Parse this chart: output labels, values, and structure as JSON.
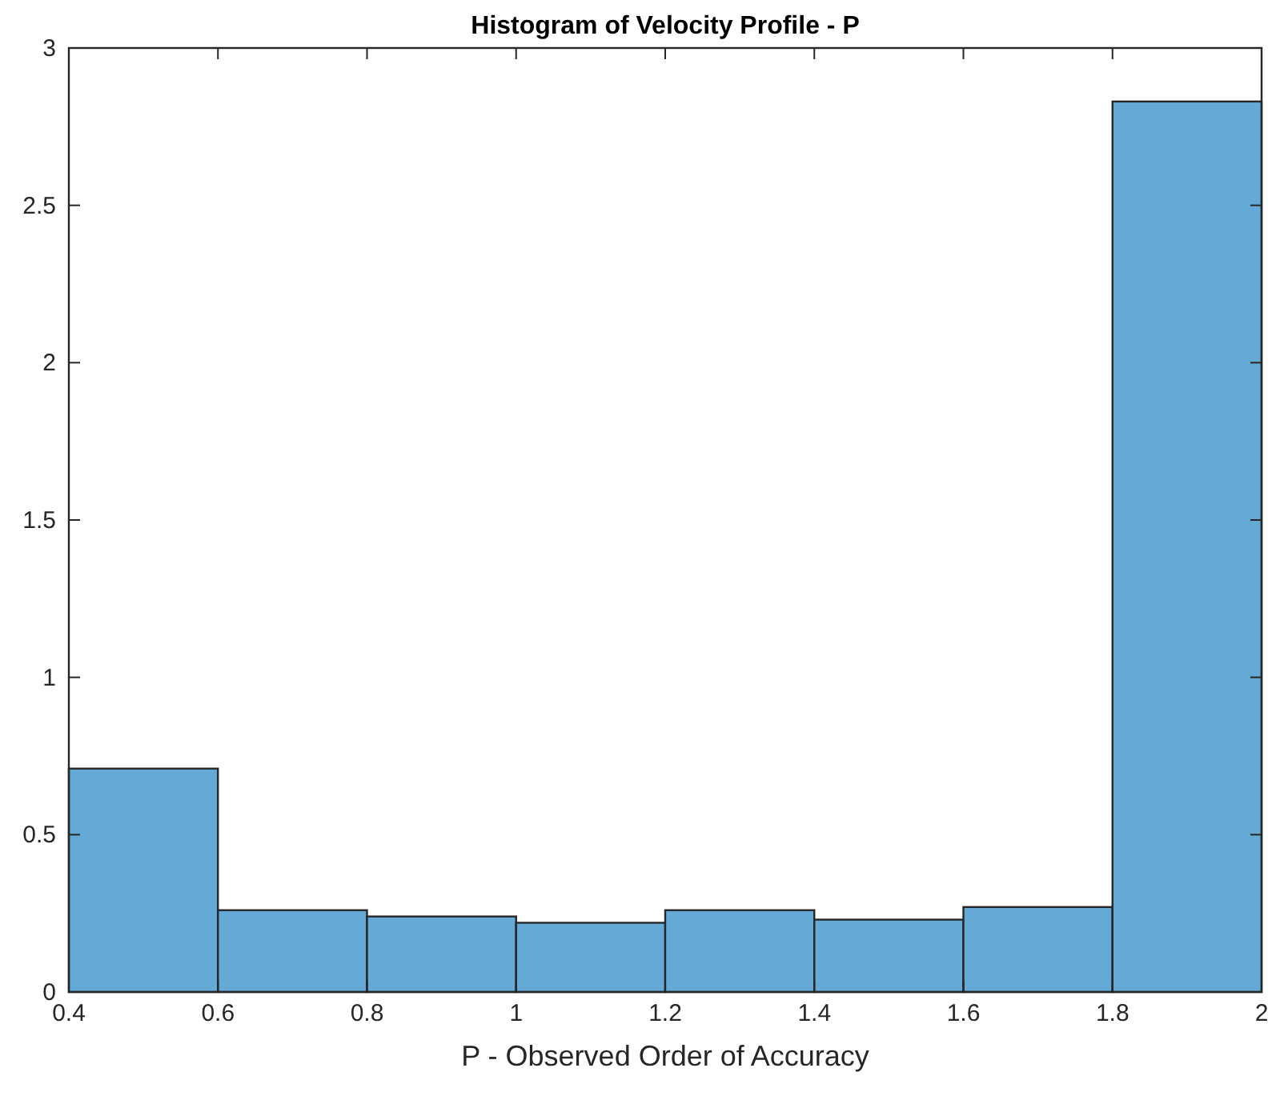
{
  "chart_data": {
    "type": "histogram",
    "title": "Histogram of Velocity Profile - P",
    "xlabel": "P - Observed Order of Accuracy",
    "bins": [
      0.4,
      0.6,
      0.8,
      1,
      1.2,
      1.4,
      1.6,
      1.8,
      2
    ],
    "values": [
      0.71,
      0.26,
      0.24,
      0.22,
      0.26,
      0.23,
      0.27,
      2.83
    ],
    "color": "#65a9d7",
    "xlim": [
      0.4,
      2
    ],
    "xticks": [
      0.4,
      0.6,
      0.8,
      1,
      1.2,
      1.4,
      1.6,
      1.8,
      2
    ],
    "ylim": [
      0,
      3
    ],
    "yticks": [
      0,
      0.5,
      1,
      1.5,
      2,
      2.5,
      3
    ],
    "grid": false
  }
}
